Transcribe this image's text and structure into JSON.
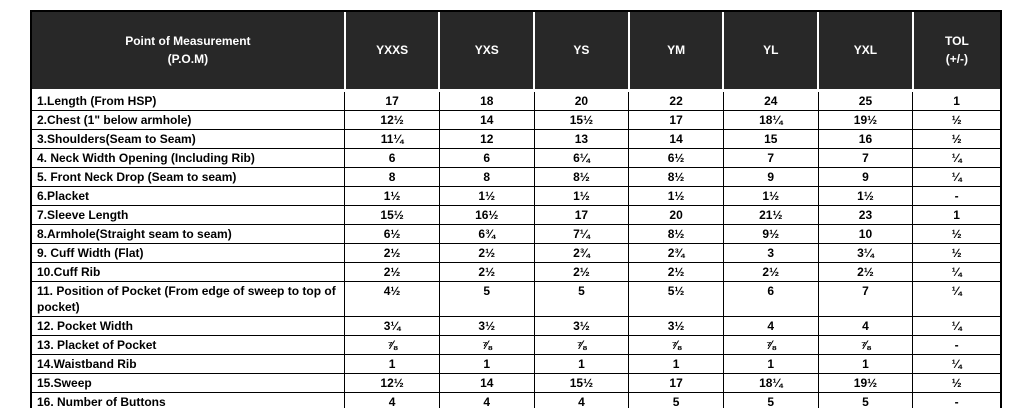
{
  "colors": {
    "header_bg": "#282828",
    "header_text": "#ffffff",
    "body_text": "#000000",
    "border_color": "#000000",
    "page_bg": "#ffffff"
  },
  "chart_data": {
    "type": "table",
    "title": "Point of Measurement (P.O.M) size specification table",
    "columns": [
      "Point of Measurement (P.O.M)",
      "YXXS",
      "YXS",
      "YS",
      "YM",
      "YL",
      "YXL",
      "TOL (+/-)"
    ],
    "rows": [
      [
        "1.Length (From HSP)",
        "17",
        "18",
        "20",
        "22",
        "24",
        "25",
        "1"
      ],
      [
        "2.Chest (1\" below armhole)",
        "12½",
        "14",
        "15½",
        "17",
        "18¼",
        "19½",
        "½"
      ],
      [
        "3.Shoulders(Seam to Seam)",
        "11¼",
        "12",
        "13",
        "14",
        "15",
        "16",
        "½"
      ],
      [
        "4. Neck Width Opening (Including Rib)",
        "6",
        "6",
        "6¼",
        "6½",
        "7",
        "7",
        "¼"
      ],
      [
        "5. Front Neck Drop (Seam to seam)",
        "8",
        "8",
        "8½",
        "8½",
        "9",
        "9",
        "¼"
      ],
      [
        "6.Placket",
        "1½",
        "1½",
        "1½",
        "1½",
        "1½",
        "1½",
        "-"
      ],
      [
        "7.Sleeve Length",
        "15½",
        "16½",
        "17",
        "20",
        "21½",
        "23",
        "1"
      ],
      [
        "8.Armhole(Straight seam to seam)",
        "6½",
        "6¾",
        "7¼",
        "8½",
        "9½",
        "10",
        "½"
      ],
      [
        "9. Cuff Width (Flat)",
        "2½",
        "2½",
        "2¾",
        "2¾",
        "3",
        "3¼",
        "½"
      ],
      [
        "10.Cuff Rib",
        "2½",
        "2½",
        "2½",
        "2½",
        "2½",
        "2½",
        "¼"
      ],
      [
        "11. Position of Pocket (From edge of sweep to top of pocket)",
        "4½",
        "5",
        "5",
        "5½",
        "6",
        "7",
        "¼"
      ],
      [
        "12. Pocket Width",
        "3¼",
        "3½",
        "3½",
        "3½",
        "4",
        "4",
        "¼"
      ],
      [
        "13. Placket of Pocket",
        "⅞",
        "⅞",
        "⅞",
        "⅞",
        "⅞",
        "⅞",
        "-"
      ],
      [
        "14.Waistband Rib",
        "1",
        "1",
        "1",
        "1",
        "1",
        "1",
        "¼"
      ],
      [
        "15.Sweep",
        "12½",
        "14",
        "15½",
        "17",
        "18¼",
        "19½",
        "½"
      ],
      [
        "16. Number of Buttons",
        "4",
        "4",
        "4",
        "5",
        "5",
        "5",
        "-"
      ]
    ]
  },
  "table": {
    "header": {
      "pom": [
        "Point of Measurement",
        "(P.O.M)"
      ],
      "size_columns": [
        "YXXS",
        "YXS",
        "YS",
        "YM",
        "YL",
        "YXL"
      ],
      "tol": [
        "TOL",
        "(+/-)"
      ]
    },
    "rows": [
      {
        "label": "1.Length (From HSP)",
        "values": [
          "17",
          "18",
          "20",
          "22",
          "24",
          "25",
          "1"
        ]
      },
      {
        "label": "2.Chest (1\" below armhole)",
        "values": [
          "12½",
          "14",
          "15½",
          "17",
          "18¼",
          "19½",
          "½"
        ]
      },
      {
        "label": "3.Shoulders(Seam to Seam)",
        "values": [
          "11¼",
          "12",
          "13",
          "14",
          "15",
          "16",
          "½"
        ]
      },
      {
        "label": "4. Neck Width Opening (Including Rib)",
        "values": [
          "6",
          "6",
          "6¼",
          "6½",
          "7",
          "7",
          "¼"
        ]
      },
      {
        "label": "5. Front Neck Drop (Seam to seam)",
        "values": [
          "8",
          "8",
          "8½",
          "8½",
          "9",
          "9",
          "¼"
        ]
      },
      {
        "label": "6.Placket",
        "values": [
          "1½",
          "1½",
          "1½",
          "1½",
          "1½",
          "1½",
          "-"
        ]
      },
      {
        "label": "7.Sleeve Length",
        "values": [
          "15½",
          "16½",
          "17",
          "20",
          "21½",
          "23",
          "1"
        ]
      },
      {
        "label": "8.Armhole(Straight seam to seam)",
        "values": [
          "6½",
          "6¾",
          "7¼",
          "8½",
          "9½",
          "10",
          "½"
        ]
      },
      {
        "label": "9. Cuff Width (Flat)",
        "values": [
          "2½",
          "2½",
          "2¾",
          "2¾",
          "3",
          "3¼",
          "½"
        ]
      },
      {
        "label": "10.Cuff Rib",
        "values": [
          "2½",
          "2½",
          "2½",
          "2½",
          "2½",
          "2½",
          "¼"
        ]
      },
      {
        "label": "11. Position of Pocket (From edge of sweep to top of pocket)",
        "values": [
          "4½",
          "5",
          "5",
          "5½",
          "6",
          "7",
          "¼"
        ]
      },
      {
        "label": "12. Pocket Width",
        "values": [
          "3¼",
          "3½",
          "3½",
          "3½",
          "4",
          "4",
          "¼"
        ]
      },
      {
        "label": "13. Placket of Pocket",
        "values": [
          "⅞",
          "⅞",
          "⅞",
          "⅞",
          "⅞",
          "⅞",
          "-"
        ]
      },
      {
        "label": "14.Waistband Rib",
        "values": [
          "1",
          "1",
          "1",
          "1",
          "1",
          "1",
          "¼"
        ]
      },
      {
        "label": "15.Sweep",
        "values": [
          "12½",
          "14",
          "15½",
          "17",
          "18¼",
          "19½",
          "½"
        ]
      },
      {
        "label": "16. Number of Buttons",
        "values": [
          "4",
          "4",
          "4",
          "5",
          "5",
          "5",
          "-"
        ]
      }
    ]
  }
}
